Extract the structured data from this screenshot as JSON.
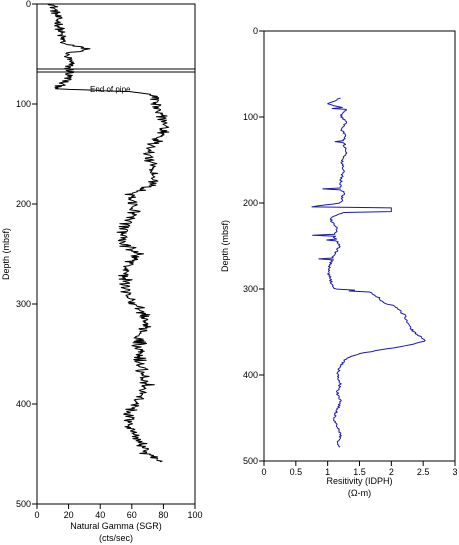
{
  "chart_data": [
    {
      "type": "line",
      "xlabel": "Natural Gamma (SGR)",
      "xunit": "(cts/sec)",
      "ylabel": "Depth (mbsf)",
      "xlim": [
        0,
        100
      ],
      "ylim": [
        0,
        500
      ],
      "y_inverted": true,
      "xticks": [
        0,
        20,
        40,
        60,
        80,
        100
      ],
      "yticks": [
        0,
        100,
        200,
        300,
        400,
        500
      ],
      "grid": false,
      "line_color": "#000000",
      "annotation": {
        "text": "End of pipe",
        "depth": 68
      },
      "series": [
        {
          "profile": [
            [
              0,
              10
            ],
            [
              10,
              12
            ],
            [
              20,
              14
            ],
            [
              30,
              15
            ],
            [
              40,
              17
            ],
            [
              45,
              33
            ],
            [
              50,
              18
            ],
            [
              55,
              20
            ],
            [
              60,
              21
            ],
            [
              65,
              20
            ],
            [
              68,
              22
            ],
            [
              70,
              20
            ],
            [
              75,
              20
            ],
            [
              80,
              15
            ],
            [
              85,
              14
            ],
            [
              88,
              62
            ],
            [
              92,
              75
            ],
            [
              100,
              77
            ],
            [
              110,
              79
            ],
            [
              120,
              80
            ],
            [
              130,
              80
            ],
            [
              140,
              74
            ],
            [
              150,
              70
            ],
            [
              160,
              72
            ],
            [
              170,
              74
            ],
            [
              180,
              74
            ],
            [
              190,
              60
            ],
            [
              200,
              60
            ],
            [
              210,
              62
            ],
            [
              220,
              57
            ],
            [
              230,
              53
            ],
            [
              240,
              54
            ],
            [
              250,
              64
            ],
            [
              260,
              58
            ],
            [
              270,
              56
            ],
            [
              280,
              55
            ],
            [
              290,
              57
            ],
            [
              300,
              62
            ],
            [
              310,
              68
            ],
            [
              320,
              67
            ],
            [
              330,
              66
            ],
            [
              340,
              65
            ],
            [
              350,
              64
            ],
            [
              360,
              65
            ],
            [
              370,
              67
            ],
            [
              380,
              70
            ],
            [
              390,
              67
            ],
            [
              400,
              63
            ],
            [
              410,
              58
            ],
            [
              420,
              60
            ],
            [
              430,
              62
            ],
            [
              440,
              66
            ],
            [
              450,
              70
            ],
            [
              458,
              78
            ]
          ]
        }
      ]
    },
    {
      "type": "line",
      "xlabel": "Resitivity (IDPH)",
      "xunit": "(Ω-m)",
      "ylabel": "Depth (mbsf)",
      "xlim": [
        0,
        3
      ],
      "ylim": [
        0,
        500
      ],
      "y_inverted": true,
      "xticks": [
        0,
        0.5,
        1,
        1.5,
        2,
        2.5,
        3
      ],
      "ytick_labels": [
        "0",
        "100",
        "200",
        "300",
        "400",
        "500"
      ],
      "yticks": [
        0,
        100,
        200,
        300,
        400,
        500
      ],
      "grid": false,
      "line_color": "#1a1aa6",
      "series": [
        {
          "profile": [
            [
              78,
              1.2
            ],
            [
              85,
              1.0
            ],
            [
              90,
              1.3
            ],
            [
              95,
              1.25
            ],
            [
              100,
              1.2
            ],
            [
              105,
              1.3
            ],
            [
              110,
              1.25
            ],
            [
              115,
              1.2
            ],
            [
              120,
              1.28
            ],
            [
              130,
              1.25
            ],
            [
              140,
              1.3
            ],
            [
              150,
              1.22
            ],
            [
              160,
              1.25
            ],
            [
              170,
              1.22
            ],
            [
              180,
              1.2
            ],
            [
              190,
              1.25
            ],
            [
              200,
              1.2
            ],
            [
              205,
              0.7
            ],
            [
              210,
              1.3
            ],
            [
              215,
              1.1
            ],
            [
              220,
              1.05
            ],
            [
              230,
              1.15
            ],
            [
              240,
              1.1
            ],
            [
              250,
              1.2
            ],
            [
              260,
              1.1
            ],
            [
              270,
              1.05
            ],
            [
              280,
              1.0
            ],
            [
              290,
              1.05
            ],
            [
              300,
              1.1
            ],
            [
              302,
              1.6
            ],
            [
              305,
              1.7
            ],
            [
              310,
              1.8
            ],
            [
              315,
              1.85
            ],
            [
              320,
              2.05
            ],
            [
              330,
              2.2
            ],
            [
              340,
              2.25
            ],
            [
              350,
              2.35
            ],
            [
              355,
              2.45
            ],
            [
              360,
              2.55
            ],
            [
              365,
              2.3
            ],
            [
              370,
              1.9
            ],
            [
              375,
              1.5
            ],
            [
              380,
              1.3
            ],
            [
              390,
              1.2
            ],
            [
              400,
              1.15
            ],
            [
              410,
              1.2
            ],
            [
              420,
              1.15
            ],
            [
              430,
              1.2
            ],
            [
              440,
              1.15
            ],
            [
              450,
              1.1
            ],
            [
              460,
              1.15
            ],
            [
              470,
              1.2
            ],
            [
              480,
              1.15
            ],
            [
              485,
              1.18
            ]
          ]
        }
      ]
    }
  ]
}
